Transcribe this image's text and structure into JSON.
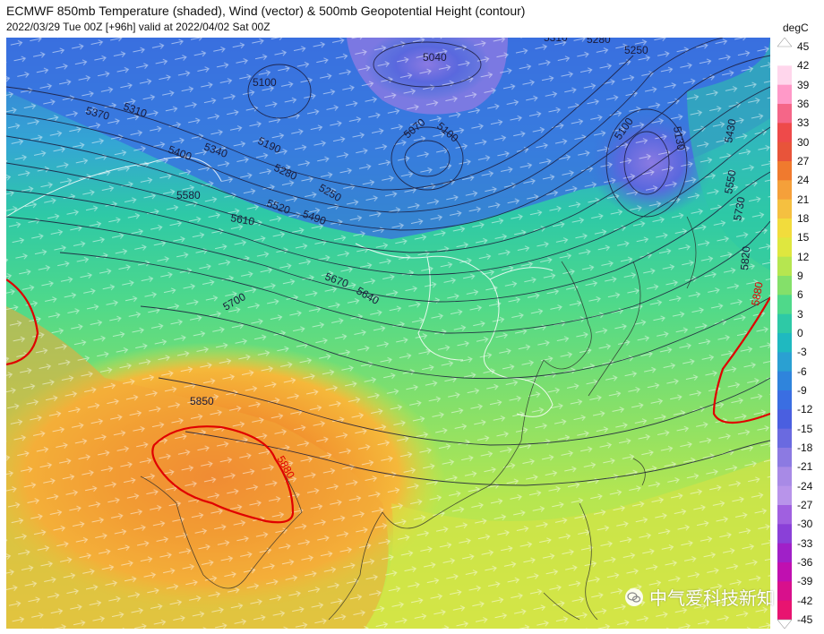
{
  "title": {
    "line1": "ECMWF 850mb Temperature (shaded), Wind (vector) & 500mb Geopotential Height (contour)",
    "line2": "2022/03/29 Tue 00Z [+96h] valid at 2022/04/02 Sat 00Z"
  },
  "colorbar": {
    "unit": "degC",
    "ticks": [
      "45",
      "42",
      "39",
      "36",
      "33",
      "30",
      "27",
      "24",
      "21",
      "18",
      "15",
      "12",
      "9",
      "6",
      "3",
      "0",
      "-3",
      "-6",
      "-9",
      "-12",
      "-15",
      "-18",
      "-21",
      "-24",
      "-27",
      "-30",
      "-33",
      "-36",
      "-39",
      "-42",
      "-45"
    ],
    "colors": [
      "#ffffff",
      "#ffd6ec",
      "#ff99c8",
      "#f56688",
      "#ee4a4a",
      "#e8543a",
      "#f07a2e",
      "#f5a03a",
      "#f5c040",
      "#f2dc3c",
      "#dfe73f",
      "#b6e650",
      "#84e06a",
      "#4fd98a",
      "#2ec9a6",
      "#1fb9c0",
      "#2aa0d2",
      "#2f84dc",
      "#3a6ee2",
      "#4a5fe0",
      "#6a6ae0",
      "#8c7ae2",
      "#a88ae6",
      "#b894ea",
      "#a060e0",
      "#8a40d8",
      "#a020c8",
      "#c010b0",
      "#d8108c",
      "#e81470"
    ]
  },
  "contours": {
    "height_labels": [
      "5040",
      "5100",
      "5070",
      "5100",
      "5310",
      "5280",
      "5250",
      "5100",
      "5130",
      "5370",
      "5310",
      "5190",
      "5340",
      "5400",
      "5280",
      "5250",
      "5430",
      "5580",
      "5520",
      "5490",
      "5610",
      "5550",
      "5670",
      "5640",
      "5730",
      "5700",
      "5820",
      "5850",
      "5880",
      "5880"
    ]
  },
  "watermark": {
    "icon": "wechat-icon",
    "text": "中气爱科技新知"
  }
}
